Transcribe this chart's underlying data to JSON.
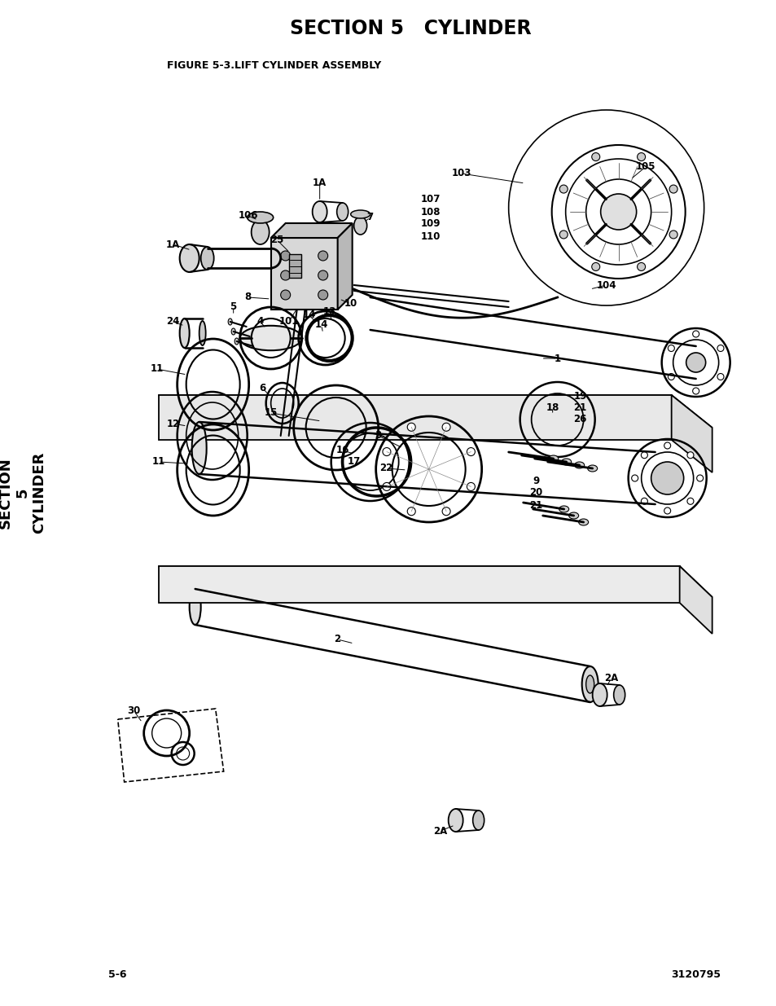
{
  "title": "SECTION 5   CYLINDER",
  "figure_label": "FIGURE 5-3.LIFT CYLINDER ASSEMBLY",
  "page_num": "5-6",
  "doc_num": "3120795",
  "sidebar_text": "SECTION\n5\nCYLINDER",
  "sidebar_bg": "#d3d3d3",
  "bg_color": "#ffffff",
  "fig_width": 9.54,
  "fig_height": 12.35,
  "dpi": 100
}
